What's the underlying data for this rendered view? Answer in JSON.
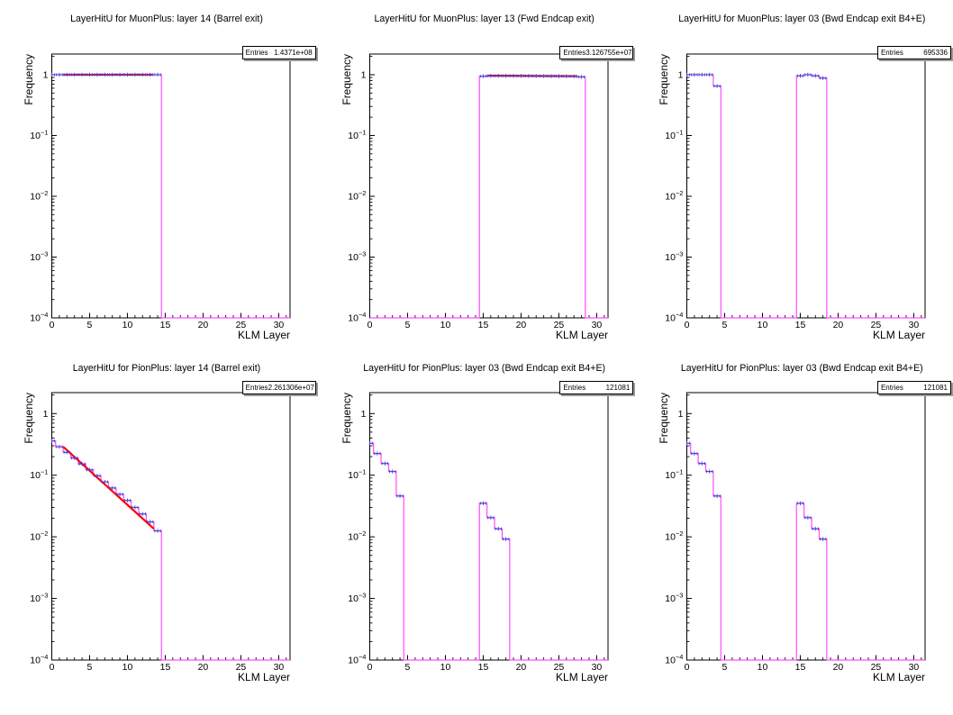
{
  "page": {
    "background": "#ffffff"
  },
  "stats_label": "Entries",
  "axes": {
    "xlabel": "KLM Layer",
    "ylabel": "Frequency",
    "x_major_ticks": [
      0,
      5,
      10,
      15,
      20,
      25,
      30
    ],
    "x_minor_step": 1,
    "x_range": [
      0,
      31.5
    ],
    "y_scale": "log",
    "y_major_exps": [
      0,
      -1,
      -2,
      -3,
      -4
    ],
    "y_range_exp": [
      -4,
      0.34
    ],
    "grid": false,
    "legend": false
  },
  "colors": {
    "hist": "#ff4dff",
    "marker": "#4343d8",
    "fit": "#ff0000",
    "frame": "#000000",
    "text": "#000000",
    "stats_shadow": "#9a9a9a"
  },
  "chart_data": [
    {
      "type": "histogram",
      "title": "LayerHitU for MuonPlus: layer 14 (Barrel exit)",
      "entries": "1.4371e+08",
      "xlabel": "KLM Layer",
      "ylabel": "Frequency",
      "bin_width": 1,
      "groups": [
        {
          "first_bin_center": 0,
          "values": [
            1.0,
            1.0,
            1.0,
            1.0,
            1.0,
            1.0,
            1.0,
            1.0,
            1.0,
            1.0,
            1.0,
            1.0,
            1.0,
            1.0,
            1.0
          ]
        }
      ],
      "fit": {
        "x1": 1.5,
        "y1": 1.0,
        "x2": 13.4,
        "y2": 1.0
      }
    },
    {
      "type": "histogram",
      "title": "LayerHitU for MuonPlus: layer 13 (Fwd Endcap exit)",
      "entries": "3.126755e+07",
      "xlabel": "KLM Layer",
      "ylabel": "Frequency",
      "bin_width": 1,
      "groups": [
        {
          "first_bin_center": 15,
          "values": [
            0.945,
            0.955,
            0.96,
            0.96,
            0.96,
            0.958,
            0.955,
            0.952,
            0.95,
            0.948,
            0.945,
            0.942,
            0.938,
            0.92
          ]
        }
      ],
      "fit": {
        "x1": 15.5,
        "y1": 0.965,
        "x2": 27.4,
        "y2": 0.945
      }
    },
    {
      "type": "histogram",
      "title": "LayerHitU for MuonPlus: layer 03 (Bwd Endcap exit B4+E)",
      "entries": "695336",
      "xlabel": "KLM Layer",
      "ylabel": "Frequency",
      "bin_width": 1,
      "groups": [
        {
          "first_bin_center": 0,
          "values": [
            1.0,
            1.0,
            1.0,
            1.0,
            0.65
          ]
        },
        {
          "first_bin_center": 15,
          "values": [
            0.96,
            1.0,
            0.96,
            0.88
          ]
        }
      ],
      "fit": null
    },
    {
      "type": "histogram",
      "title": "LayerHitU for PionPlus: layer 14 (Barrel exit)",
      "entries": "2.261306e+07",
      "xlabel": "KLM Layer",
      "ylabel": "Frequency",
      "bin_width": 1,
      "groups": [
        {
          "first_bin_center": 0,
          "values": [
            0.36,
            0.29,
            0.235,
            0.19,
            0.152,
            0.122,
            0.098,
            0.078,
            0.062,
            0.049,
            0.039,
            0.03,
            0.0235,
            0.0175,
            0.0125
          ]
        }
      ],
      "fit": {
        "x1": 1.5,
        "y1": 0.29,
        "x2": 13.5,
        "y2": 0.0135
      }
    },
    {
      "type": "histogram",
      "title": "LayerHitU for PionPlus: layer 03 (Bwd Endcap exit B4+E)",
      "entries": "121081",
      "xlabel": "KLM Layer",
      "ylabel": "Frequency",
      "bin_width": 1,
      "groups": [
        {
          "first_bin_center": 0,
          "values": [
            0.33,
            0.225,
            0.155,
            0.115,
            0.046
          ]
        },
        {
          "first_bin_center": 15,
          "values": [
            0.035,
            0.0205,
            0.0135,
            0.0092
          ]
        }
      ],
      "fit": null
    },
    {
      "type": "histogram",
      "title": "LayerHitU for PionPlus: layer 03 (Bwd Endcap exit B4+E)",
      "entries": "121081",
      "xlabel": "KLM Layer",
      "ylabel": "Frequency",
      "bin_width": 1,
      "groups": [
        {
          "first_bin_center": 0,
          "values": [
            0.33,
            0.225,
            0.155,
            0.115,
            0.046
          ]
        },
        {
          "first_bin_center": 15,
          "values": [
            0.035,
            0.0205,
            0.0135,
            0.0092
          ]
        }
      ],
      "fit": null
    }
  ]
}
